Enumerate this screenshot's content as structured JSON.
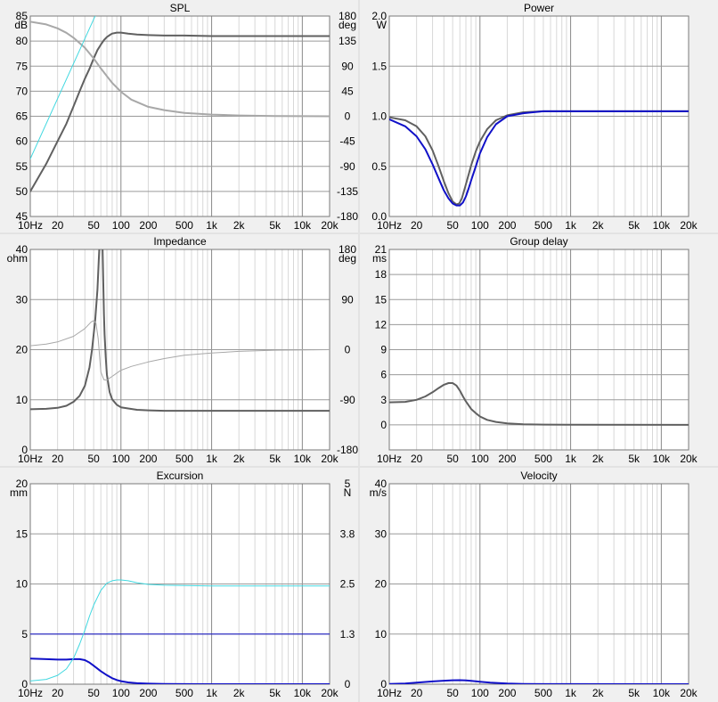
{
  "chart_data": [
    {
      "type": "line",
      "title": "SPL",
      "x_scale": "log",
      "xlim": [
        10,
        20000
      ],
      "xticks": [
        10,
        20,
        50,
        100,
        200,
        500,
        1000,
        2000,
        5000,
        10000,
        20000
      ],
      "xtick_labels": [
        "10Hz",
        "20",
        "50",
        "100",
        "200",
        "500",
        "1k",
        "2k",
        "5k",
        "10k",
        "20k"
      ],
      "left_unit": "dB",
      "ylim": [
        45,
        85
      ],
      "yticks": [
        45,
        50,
        55,
        60,
        65,
        70,
        75,
        80,
        85
      ],
      "right_unit": "deg",
      "y2lim": [
        -180,
        180
      ],
      "y2ticks": [
        -180,
        -135,
        -90,
        -45,
        0,
        45,
        90,
        135,
        180
      ],
      "grid": true,
      "series": [
        {
          "color": "#606060",
          "axis": "left",
          "width": 2,
          "x": [
            10,
            15,
            20,
            25,
            30,
            35,
            40,
            45,
            50,
            55,
            60,
            65,
            70,
            75,
            80,
            90,
            100,
            120,
            150,
            200,
            300,
            500,
            1000,
            20000
          ],
          "y": [
            50,
            55.5,
            60,
            63.5,
            67,
            70,
            72.5,
            74.5,
            76.5,
            78.2,
            79.3,
            80.2,
            80.8,
            81.2,
            81.5,
            81.7,
            81.7,
            81.5,
            81.3,
            81.2,
            81.1,
            81.1,
            81,
            81
          ]
        },
        {
          "color": "#a8a8a8",
          "axis": "right",
          "width": 2,
          "x": [
            10,
            15,
            20,
            25,
            30,
            40,
            50,
            60,
            70,
            80,
            100,
            130,
            200,
            300,
            500,
            1000,
            2000,
            5000,
            20000
          ],
          "y": [
            170,
            165,
            158,
            150,
            141,
            123,
            104,
            86,
            72,
            60,
            44,
            30,
            17,
            11,
            6,
            3,
            1.5,
            0.5,
            0
          ]
        },
        {
          "color": "#40d8e0",
          "axis": "left",
          "width": 1,
          "x": [
            10,
            20,
            40,
            60
          ],
          "y": [
            56.5,
            68.5,
            80.5,
            87.5
          ]
        }
      ]
    },
    {
      "type": "line",
      "title": "Power",
      "x_scale": "log",
      "xlim": [
        10,
        20000
      ],
      "xticks": [
        10,
        20,
        50,
        100,
        200,
        500,
        1000,
        2000,
        5000,
        10000,
        20000
      ],
      "xtick_labels": [
        "10Hz",
        "20",
        "50",
        "100",
        "200",
        "500",
        "1k",
        "2k",
        "5k",
        "10k",
        "20k"
      ],
      "left_unit": "W",
      "ylim": [
        0,
        2
      ],
      "yticks": [
        0,
        0.5,
        1,
        1.5,
        2
      ],
      "ytick_labels": [
        "0.0",
        "0.5",
        "1.0",
        "1.5",
        "2.0"
      ],
      "grid": true,
      "series": [
        {
          "color": "#606060",
          "axis": "left",
          "width": 2,
          "x": [
            10,
            15,
            20,
            25,
            30,
            35,
            40,
            45,
            50,
            55,
            59,
            63,
            68,
            75,
            80,
            90,
            100,
            120,
            150,
            200,
            300,
            500,
            1000,
            20000
          ],
          "y": [
            0.99,
            0.96,
            0.9,
            0.8,
            0.66,
            0.5,
            0.35,
            0.23,
            0.15,
            0.12,
            0.13,
            0.18,
            0.28,
            0.42,
            0.51,
            0.65,
            0.75,
            0.87,
            0.96,
            1.01,
            1.04,
            1.05,
            1.05,
            1.05
          ]
        },
        {
          "color": "#1010c8",
          "axis": "left",
          "width": 2,
          "x": [
            10,
            15,
            20,
            25,
            30,
            35,
            40,
            45,
            50,
            55,
            60,
            65,
            70,
            75,
            80,
            90,
            100,
            120,
            150,
            200,
            300,
            500,
            1000,
            20000
          ],
          "y": [
            0.97,
            0.9,
            0.8,
            0.67,
            0.52,
            0.38,
            0.26,
            0.18,
            0.13,
            0.11,
            0.11,
            0.14,
            0.2,
            0.28,
            0.36,
            0.5,
            0.63,
            0.79,
            0.92,
            1.0,
            1.03,
            1.05,
            1.05,
            1.05
          ]
        }
      ]
    },
    {
      "type": "line",
      "title": "Impedance",
      "x_scale": "log",
      "xlim": [
        10,
        20000
      ],
      "xticks": [
        10,
        20,
        50,
        100,
        200,
        500,
        1000,
        2000,
        5000,
        10000,
        20000
      ],
      "xtick_labels": [
        "10Hz",
        "20",
        "50",
        "100",
        "200",
        "500",
        "1k",
        "2k",
        "5k",
        "10k",
        "20k"
      ],
      "left_unit": "ohm",
      "ylim": [
        0,
        40
      ],
      "yticks": [
        0,
        10,
        20,
        30,
        40
      ],
      "right_unit": "deg",
      "y2lim": [
        -180,
        180
      ],
      "y2ticks": [
        -180,
        -90,
        0,
        90,
        180
      ],
      "grid": true,
      "series": [
        {
          "color": "#606060",
          "axis": "left",
          "width": 2,
          "x": [
            10,
            15,
            20,
            25,
            30,
            35,
            40,
            45,
            48,
            52,
            55,
            57,
            59,
            60,
            61,
            62,
            63,
            64,
            65,
            66,
            68,
            70,
            75,
            80,
            90,
            100,
            150,
            200,
            300,
            500,
            1000,
            2000,
            5000,
            20000
          ],
          "y": [
            8.1,
            8.2,
            8.4,
            8.8,
            9.6,
            10.8,
            12.8,
            16.5,
            20,
            26,
            32,
            38,
            44,
            48,
            48,
            44,
            38,
            32,
            27,
            23,
            18.5,
            15,
            11.5,
            10.1,
            9.0,
            8.5,
            8.0,
            7.9,
            7.8,
            7.8,
            7.8,
            7.8,
            7.8,
            7.8
          ]
        },
        {
          "color": "#a8a8a8",
          "axis": "right",
          "width": 1,
          "x": [
            10,
            15,
            20,
            30,
            40,
            47,
            50,
            53,
            56,
            60,
            65,
            70,
            75,
            80,
            90,
            100,
            130,
            200,
            300,
            500,
            1000,
            2000,
            5000,
            20000
          ],
          "y": [
            7,
            10,
            14,
            24,
            38,
            50,
            52,
            48,
            20,
            -40,
            -54,
            -55,
            -51,
            -48,
            -42,
            -37,
            -30,
            -22,
            -16,
            -10,
            -6,
            -3,
            -1,
            0
          ]
        }
      ]
    },
    {
      "type": "line",
      "title": "Group delay",
      "x_scale": "log",
      "xlim": [
        10,
        20000
      ],
      "xticks": [
        10,
        20,
        50,
        100,
        200,
        500,
        1000,
        2000,
        5000,
        10000,
        20000
      ],
      "xtick_labels": [
        "10Hz",
        "20",
        "50",
        "100",
        "200",
        "500",
        "1k",
        "2k",
        "5k",
        "10k",
        "20k"
      ],
      "left_unit": "ms",
      "ylim": [
        -3,
        21
      ],
      "yticks": [
        0,
        3,
        6,
        9,
        12,
        15,
        18,
        21
      ],
      "grid": true,
      "series": [
        {
          "color": "#606060",
          "axis": "left",
          "width": 2,
          "x": [
            10,
            15,
            20,
            25,
            30,
            35,
            40,
            45,
            50,
            55,
            60,
            65,
            70,
            80,
            90,
            100,
            120,
            150,
            200,
            300,
            500,
            1000,
            20000
          ],
          "y": [
            2.7,
            2.75,
            3.0,
            3.4,
            3.9,
            4.4,
            4.8,
            5.0,
            5.0,
            4.7,
            4.1,
            3.4,
            2.8,
            1.9,
            1.4,
            1.0,
            0.6,
            0.35,
            0.18,
            0.07,
            0.03,
            0.01,
            0
          ]
        }
      ]
    },
    {
      "type": "line",
      "title": "Excursion",
      "x_scale": "log",
      "xlim": [
        10,
        20000
      ],
      "xticks": [
        10,
        20,
        50,
        100,
        200,
        500,
        1000,
        2000,
        5000,
        10000,
        20000
      ],
      "xtick_labels": [
        "10Hz",
        "20",
        "50",
        "100",
        "200",
        "500",
        "1k",
        "2k",
        "5k",
        "10k",
        "20k"
      ],
      "left_unit": "mm",
      "ylim": [
        0,
        20
      ],
      "yticks": [
        0,
        5,
        10,
        15,
        20
      ],
      "right_unit": "N",
      "y2ticks": [
        0,
        1.25,
        2.5,
        3.75,
        5
      ],
      "y2tick_labels": [
        "0",
        "1.3",
        "2.5",
        "3.8",
        "5"
      ],
      "y2lim": [
        0,
        5
      ],
      "grid": true,
      "series": [
        {
          "color": "#1010c8",
          "axis": "left",
          "width": 2,
          "x": [
            10,
            15,
            20,
            25,
            30,
            35,
            40,
            45,
            50,
            60,
            70,
            80,
            90,
            100,
            120,
            150,
            200,
            300,
            500,
            1000,
            20000
          ],
          "y": [
            2.55,
            2.5,
            2.45,
            2.45,
            2.5,
            2.5,
            2.4,
            2.15,
            1.85,
            1.3,
            0.9,
            0.6,
            0.42,
            0.3,
            0.18,
            0.1,
            0.05,
            0.02,
            0.01,
            0,
            0
          ]
        },
        {
          "color": "#1010c8",
          "axis": "left",
          "width": 1,
          "x": [
            10,
            20000
          ],
          "y": [
            5,
            5
          ]
        },
        {
          "color": "#40d8e0",
          "axis": "right",
          "width": 1,
          "x": [
            10,
            15,
            20,
            25,
            30,
            35,
            40,
            45,
            50,
            60,
            70,
            80,
            90,
            100,
            120,
            150,
            200,
            300,
            500,
            1000,
            2000,
            5000,
            20000
          ],
          "y": [
            0.08,
            0.12,
            0.22,
            0.38,
            0.65,
            1.0,
            1.35,
            1.7,
            1.97,
            2.34,
            2.52,
            2.58,
            2.6,
            2.6,
            2.58,
            2.53,
            2.49,
            2.47,
            2.46,
            2.45,
            2.45,
            2.45,
            2.45
          ]
        }
      ]
    },
    {
      "type": "line",
      "title": "Velocity",
      "x_scale": "log",
      "xlim": [
        10,
        20000
      ],
      "xticks": [
        10,
        20,
        50,
        100,
        200,
        500,
        1000,
        2000,
        5000,
        10000,
        20000
      ],
      "xtick_labels": [
        "10Hz",
        "20",
        "50",
        "100",
        "200",
        "500",
        "1k",
        "2k",
        "5k",
        "10k",
        "20k"
      ],
      "left_unit": "m/s",
      "ylim": [
        0,
        40
      ],
      "yticks": [
        0,
        10,
        20,
        30,
        40
      ],
      "grid": true,
      "series": [
        {
          "color": "#1010c8",
          "axis": "left",
          "width": 2,
          "x": [
            10,
            15,
            20,
            30,
            40,
            50,
            60,
            70,
            80,
            100,
            130,
            200,
            300,
            500,
            1000,
            20000
          ],
          "y": [
            0.05,
            0.15,
            0.3,
            0.55,
            0.7,
            0.78,
            0.8,
            0.76,
            0.65,
            0.48,
            0.3,
            0.13,
            0.06,
            0.02,
            0.01,
            0
          ]
        }
      ]
    }
  ]
}
